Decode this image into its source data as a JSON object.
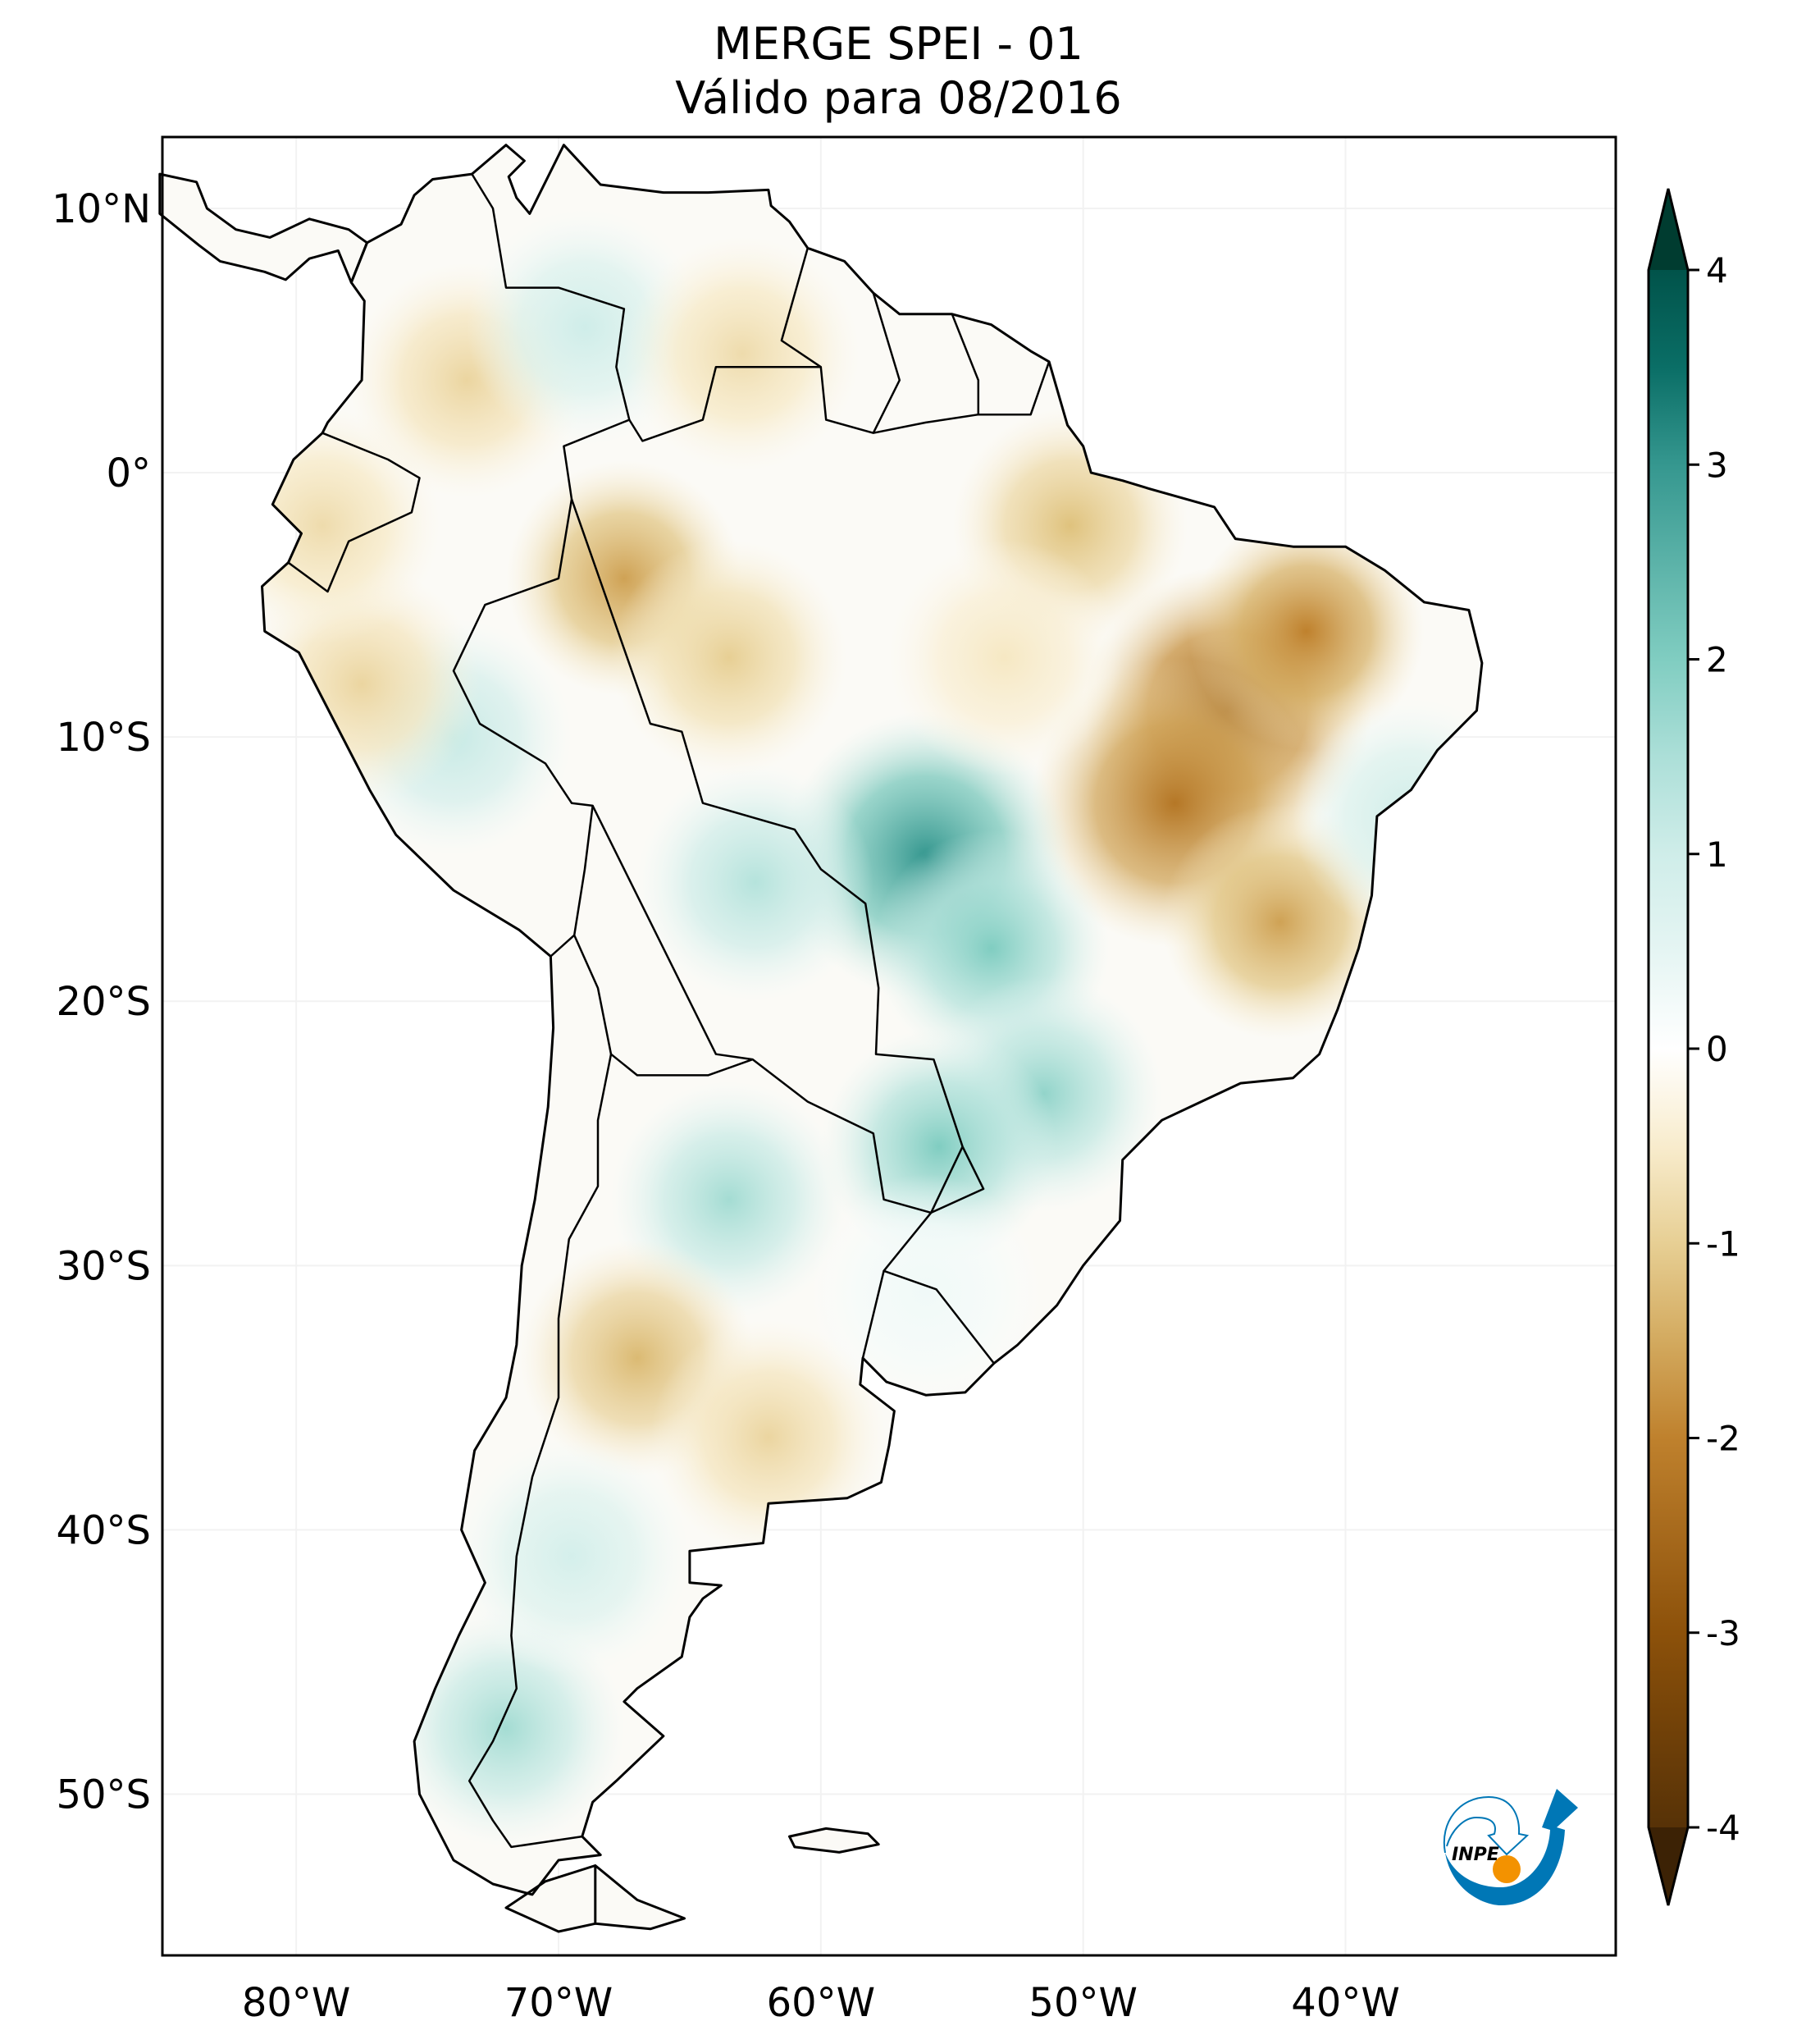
{
  "title": {
    "line1": "MERGE   SPEI - 01",
    "line2": "Válido para 08/2016"
  },
  "logo": {
    "text": "INPE",
    "colors": {
      "blue": "#0077b6",
      "orange": "#f39200"
    }
  },
  "chart_data": {
    "type": "heatmap",
    "projection": "PlateCarree",
    "xlim": [
      -85.1,
      -29.7
    ],
    "ylim": [
      -56.1,
      12.7
    ],
    "xticks": [
      -80,
      -70,
      -60,
      -50,
      -40
    ],
    "xtick_labels": [
      "80°W",
      "70°W",
      "60°W",
      "50°W",
      "40°W"
    ],
    "yticks": [
      10,
      0,
      -10,
      -20,
      -30,
      -40,
      -50
    ],
    "ytick_labels": [
      "10°N",
      "0°",
      "10°S",
      "20°S",
      "30°S",
      "40°S",
      "50°S"
    ],
    "grid": true,
    "colormap": "BrBG",
    "colorbar": {
      "orientation": "vertical",
      "placement": "right",
      "range": [
        -4,
        4
      ],
      "ticks": [
        4,
        3,
        2,
        1,
        0,
        -1,
        -2,
        -3,
        -4
      ],
      "tick_labels": [
        "4",
        "3",
        "2",
        "1",
        "0",
        "-1",
        "-2",
        "-3",
        "-4"
      ],
      "extend": "both",
      "colors": [
        "#3c2205",
        "#8c510a",
        "#bf812d",
        "#dfc27d",
        "#f6e8c3",
        "#ffffff",
        "#c7eae5",
        "#80cdc1",
        "#35978f",
        "#01665e",
        "#003c30"
      ]
    },
    "anomaly_regions": [
      {
        "lon": -44.5,
        "lat": -9.0,
        "value": -2.6
      },
      {
        "lon": -41.5,
        "lat": -6.0,
        "value": -2.0
      },
      {
        "lon": -46.5,
        "lat": -12.5,
        "value": -2.2
      },
      {
        "lon": -42.5,
        "lat": -17.0,
        "value": -1.6
      },
      {
        "lon": -56.0,
        "lat": -14.5,
        "value": 3.0
      },
      {
        "lon": -53.5,
        "lat": -18.0,
        "value": 2.0
      },
      {
        "lon": -51.5,
        "lat": -23.5,
        "value": 1.8
      },
      {
        "lon": -55.5,
        "lat": -25.5,
        "value": 2.0
      },
      {
        "lon": -62.5,
        "lat": -15.5,
        "value": 1.4
      },
      {
        "lon": -63.5,
        "lat": -27.5,
        "value": 1.6
      },
      {
        "lon": -67.0,
        "lat": -33.5,
        "value": -1.3
      },
      {
        "lon": -62.0,
        "lat": -36.5,
        "value": -0.9
      },
      {
        "lon": -67.5,
        "lat": -4.0,
        "value": -1.6
      },
      {
        "lon": -63.5,
        "lat": -7.0,
        "value": -1.0
      },
      {
        "lon": -74.0,
        "lat": -10.0,
        "value": 1.2
      },
      {
        "lon": -77.5,
        "lat": -8.0,
        "value": -0.9
      },
      {
        "lon": -79.0,
        "lat": -2.0,
        "value": -0.8
      },
      {
        "lon": -73.5,
        "lat": 3.5,
        "value": -0.9
      },
      {
        "lon": -69.0,
        "lat": 5.5,
        "value": 1.0
      },
      {
        "lon": -63.0,
        "lat": 4.5,
        "value": -0.8
      },
      {
        "lon": -50.5,
        "lat": -2.0,
        "value": -1.2
      },
      {
        "lon": -53.0,
        "lat": -7.0,
        "value": -0.6
      },
      {
        "lon": -72.0,
        "lat": -47.5,
        "value": 1.6
      },
      {
        "lon": -69.5,
        "lat": -41.0,
        "value": 0.9
      },
      {
        "lon": -37.5,
        "lat": -13.0,
        "value": 1.0
      },
      {
        "lon": -56.0,
        "lat": -31.0,
        "value": 0.3
      }
    ]
  }
}
